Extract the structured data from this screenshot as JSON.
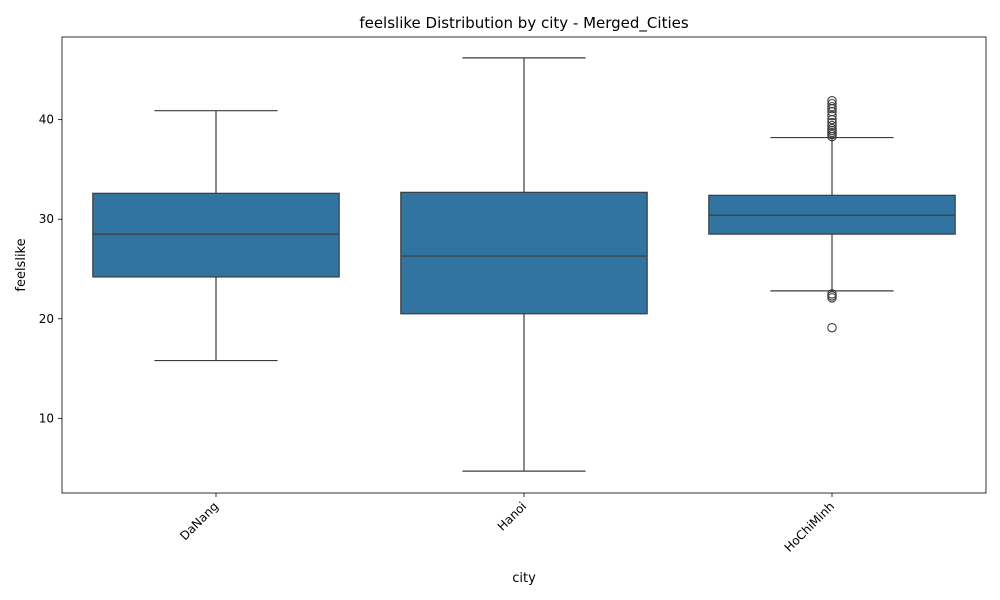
{
  "chart_data": {
    "type": "box",
    "title": "feelslike Distribution by city - Merged_Cities",
    "xlabel": "city",
    "ylabel": "feelslike",
    "ylim": [
      2.5,
      48.3
    ],
    "yticks": [
      10,
      20,
      30,
      40
    ],
    "grid": false,
    "box_color": "#3274a1",
    "line_color": "#3d3d3d",
    "categories": [
      "DaNang",
      "Hanoi",
      "HoChiMinh"
    ],
    "boxes": [
      {
        "category": "DaNang",
        "whisker_low": 15.8,
        "q1": 24.2,
        "median": 28.5,
        "q3": 32.6,
        "whisker_high": 40.9,
        "outliers": []
      },
      {
        "category": "Hanoi",
        "whisker_low": 4.7,
        "q1": 20.5,
        "median": 26.3,
        "q3": 32.7,
        "whisker_high": 46.2,
        "outliers": []
      },
      {
        "category": "HoChiMinh",
        "whisker_low": 22.8,
        "q1": 28.5,
        "median": 30.4,
        "q3": 32.4,
        "whisker_high": 38.2,
        "outliers": [
          19.1,
          22.1,
          22.3,
          22.5,
          38.3,
          38.5,
          38.7,
          38.9,
          39.1,
          39.4,
          39.7,
          40.0,
          40.4,
          40.8,
          41.1,
          41.3,
          41.6,
          41.9
        ]
      }
    ]
  }
}
